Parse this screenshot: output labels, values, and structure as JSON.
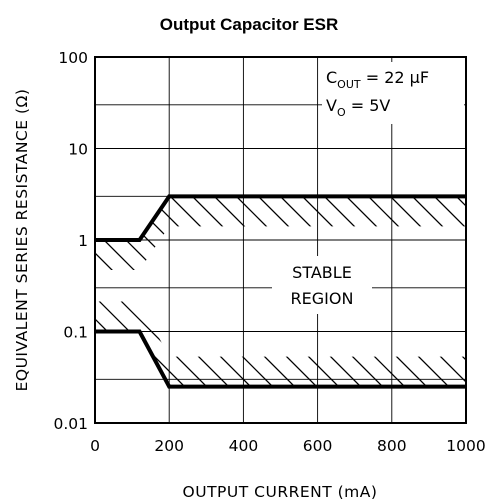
{
  "chart_data": {
    "type": "line",
    "title": "Output Capacitor ESR",
    "xlabel": "OUTPUT CURRENT (mA)",
    "ylabel": "EQUIVALENT SERIES RESISTANCE (Ω)",
    "xlim": [
      0,
      1000
    ],
    "ylim": [
      0.01,
      100
    ],
    "yscale": "log",
    "grid": true,
    "x_ticks": [
      0,
      200,
      400,
      600,
      800,
      1000
    ],
    "x_tick_labels": [
      "0",
      "200",
      "400",
      "600",
      "800",
      "1000"
    ],
    "y_ticks": [
      0.01,
      0.1,
      1,
      10,
      100
    ],
    "y_tick_labels": [
      "0.01",
      "0.1",
      "1",
      "10",
      "100"
    ],
    "series": [
      {
        "x": [
          0,
          120,
          200,
          1000
        ],
        "y": [
          1,
          1,
          3,
          3
        ]
      },
      {
        "x": [
          0,
          120,
          200,
          1000
        ],
        "y": [
          0.1,
          0.1,
          0.025,
          0.025
        ]
      }
    ],
    "annotations": {
      "conditions": [
        {
          "main": "C",
          "sub": "OUT",
          "rest": " = 22 μF"
        },
        {
          "main": "V",
          "sub": "O",
          "rest": " = 5V"
        }
      ],
      "region_label": [
        "STABLE",
        "REGION"
      ]
    },
    "colors": {
      "line": "#000000",
      "grid": "#000000",
      "hatch": "#000000"
    }
  }
}
